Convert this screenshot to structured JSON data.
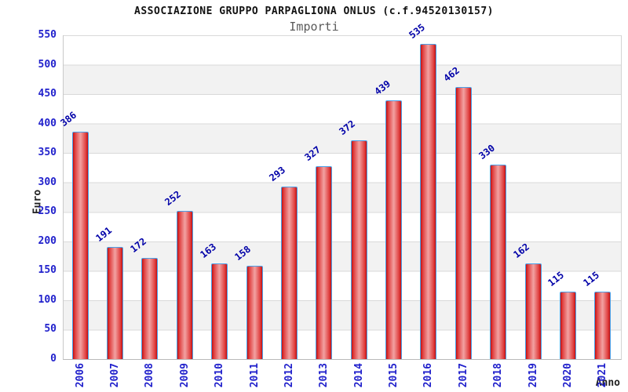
{
  "chart_data": {
    "type": "bar",
    "title": "ASSOCIAZIONE GRUPPO PARPAGLIONA ONLUS (c.f.94520130157)",
    "subtitle": "Importi",
    "xlabel": "Anno",
    "ylabel": "Euro",
    "categories": [
      "2006",
      "2007",
      "2008",
      "2009",
      "2010",
      "2011",
      "2012",
      "2013",
      "2014",
      "2015",
      "2016",
      "2017",
      "2018",
      "2019",
      "2020",
      "2021"
    ],
    "values": [
      386,
      191,
      172,
      252,
      163,
      158,
      293,
      327,
      372,
      439,
      535,
      462,
      330,
      162,
      115,
      115
    ],
    "ylim": [
      0,
      550
    ],
    "ytick_step": 50,
    "yticks": [
      0,
      50,
      100,
      150,
      200,
      250,
      300,
      350,
      400,
      450,
      500,
      550
    ],
    "grid": "horizontal-bands",
    "legend": "none",
    "colors": {
      "bar_edge": "#c41010",
      "bar_center": "#f2a2a2",
      "bar_border": "#4aa0e8",
      "value_label": "#0000a8",
      "tick_label": "#2121cc",
      "title": "#111111",
      "subtitle": "#5a5a5a",
      "axis_label": "#222222",
      "band_alt": "#f2f2f2",
      "gridline": "#d9d9d9"
    }
  }
}
